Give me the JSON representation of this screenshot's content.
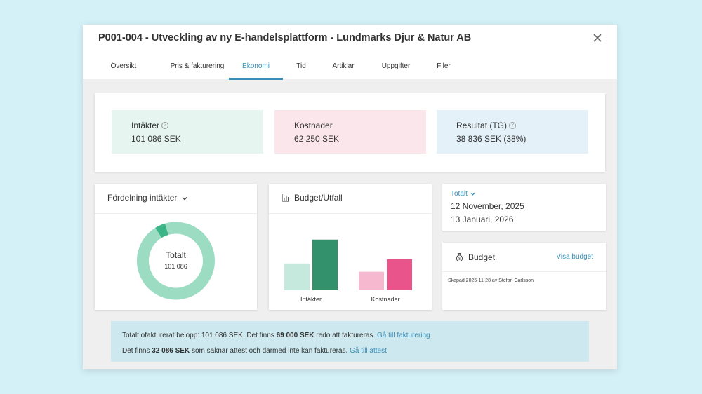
{
  "modal": {
    "title": "P001-004 - Utveckling av ny E-handelsplattform - Lundmarks Djur & Natur AB"
  },
  "tabs": [
    {
      "label": "Översikt"
    },
    {
      "label": "Pris & fakturering"
    },
    {
      "label": "Ekonomi",
      "active": true
    },
    {
      "label": "Tid"
    },
    {
      "label": "Artiklar"
    },
    {
      "label": "Uppgifter"
    },
    {
      "label": "Filer"
    }
  ],
  "kpis": {
    "income": {
      "label": "Intäkter",
      "value": "101 086 SEK",
      "bg": "#e6f5ef"
    },
    "costs": {
      "label": "Kostnader",
      "value": "62 250 SEK",
      "bg": "#fbe6ec"
    },
    "result": {
      "label": "Resultat (TG)",
      "value": "38 836 SEK (38%)",
      "bg": "#e4f1f9"
    }
  },
  "distribution": {
    "title": "Fördelning intäkter",
    "center_label": "Totalt",
    "center_value": "101 086",
    "slices": [
      {
        "value": 0.955,
        "color": "#9cdcc2"
      },
      {
        "value": 0.045,
        "color": "#3bb587"
      }
    ]
  },
  "budget_chart": {
    "title": "Budget/Utfall",
    "chart_data": {
      "type": "bar",
      "categories": [
        "Intäkter",
        "Kostnader"
      ],
      "series": [
        {
          "values": [
            45,
            31
          ],
          "colors": [
            "#c6e9dd",
            "#f6b8cf"
          ]
        },
        {
          "values": [
            85,
            52
          ],
          "colors": [
            "#33926b",
            "#e9548a"
          ]
        }
      ],
      "ylim": [
        0,
        100
      ]
    }
  },
  "period": {
    "label": "Totalt",
    "start": "12 November, 2025",
    "end": "13 Januari, 2026"
  },
  "budget_card": {
    "title": "Budget",
    "link": "Visa budget",
    "created": "Skapad 2025-11-28 av Stefan Carlsson"
  },
  "notice": {
    "line1_pre": "Totalt ofakturerat belopp: 101 086 SEK. Det finns ",
    "line1_bold": "69 000 SEK",
    "line1_post": " redo att faktureras. ",
    "line1_link": "Gå till fakturering",
    "line2_pre": "Det finns ",
    "line2_bold": "32 086 SEK",
    "line2_post": " som saknar attest och därmed inte kan faktureras. ",
    "line2_link": "Gå till attest"
  }
}
